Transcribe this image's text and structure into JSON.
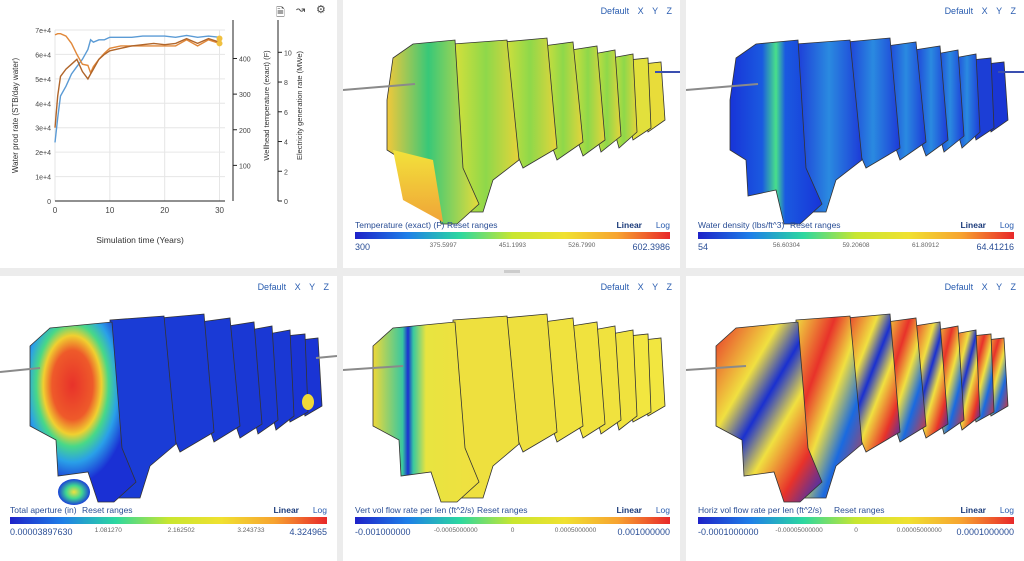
{
  "chart_panel": {
    "toolbar": {
      "doc_icon": "document-icon",
      "trend_icon": "trend-icon",
      "settings_icon": "gear-icon"
    },
    "chart_data": {
      "type": "line",
      "xlabel": "Simulation time (Years)",
      "xlim": [
        0,
        31
      ],
      "x_ticks": [
        "0",
        "10",
        "20",
        "30"
      ],
      "y_axes": [
        {
          "label": "Water prod rate (STB/day water)",
          "ticks": [
            "0",
            "1e+4",
            "2e+4",
            "3e+4",
            "4e+4",
            "5e+4",
            "6e+4",
            "7e+4"
          ],
          "lim": [
            0,
            70000
          ]
        },
        {
          "label": "Wellhead temperature (exact) (F)",
          "ticks": [
            "100",
            "200",
            "300",
            "400"
          ],
          "lim": [
            0,
            480
          ]
        },
        {
          "label": "Electricity generation rate (MWe)",
          "ticks": [
            "0",
            "2",
            "4",
            "6",
            "8",
            "10"
          ],
          "lim": [
            0,
            11.5
          ]
        }
      ],
      "series": [
        {
          "color": "#5b9bd5",
          "x": [
            0,
            0.5,
            1,
            2,
            3,
            4,
            5,
            6,
            6.5,
            7,
            8,
            9,
            10,
            12,
            14,
            16,
            18,
            20,
            22,
            24,
            26,
            28,
            30
          ],
          "y": [
            24000,
            34000,
            43000,
            47000,
            52000,
            55000,
            58000,
            62000,
            66000,
            65000,
            66000,
            66000,
            67000,
            67000,
            67000,
            67500,
            67500,
            67500,
            67000,
            67800,
            67000,
            67500,
            67000
          ]
        },
        {
          "color": "#e1883a",
          "x": [
            0,
            0.5,
            1,
            2,
            3,
            4,
            5,
            6,
            6.5,
            7,
            8,
            9,
            10,
            12,
            14,
            16,
            18,
            20,
            22,
            24,
            26,
            28,
            30
          ],
          "y": [
            68000,
            68500,
            68500,
            67500,
            64500,
            60000,
            56000,
            55500,
            52500,
            55000,
            58000,
            60500,
            62500,
            63500,
            63500,
            63500,
            63500,
            63500,
            63500,
            66000,
            63500,
            66000,
            64500
          ]
        },
        {
          "color": "#b0652a",
          "x": [
            0,
            0.5,
            1,
            2,
            3,
            4,
            5,
            6,
            6.5,
            7,
            8,
            9,
            10,
            12,
            14,
            16,
            18,
            20,
            22,
            24,
            26,
            28,
            30
          ],
          "y": [
            30000,
            43000,
            51000,
            54000,
            56000,
            58000,
            53000,
            50000,
            52000,
            54000,
            58000,
            60000,
            61500,
            62500,
            63500,
            64000,
            64500,
            64000,
            64500,
            66500,
            64500,
            66500,
            65000
          ]
        }
      ]
    }
  },
  "view_controls": {
    "default": "Default",
    "x": "X",
    "y": "Y",
    "z": "Z"
  },
  "panels": [
    {
      "colorbar": {
        "title": "Temperature (exact) (F)",
        "reset": "Reset ranges",
        "linear": "Linear",
        "log": "Log",
        "min": "300",
        "t1": "375.5997",
        "t2": "451.1993",
        "t3": "526.7990",
        "max": "602.3986"
      }
    },
    {
      "colorbar": {
        "title": "Water density (lbs/ft^3)",
        "reset": "Reset ranges",
        "linear": "Linear",
        "log": "Log",
        "min": "54",
        "t1": "56.60304",
        "t2": "59.20608",
        "t3": "61.80912",
        "max": "64.41216"
      }
    },
    {
      "colorbar": {
        "title": "Total aperture (in)",
        "reset": "Reset ranges",
        "linear": "Linear",
        "log": "Log",
        "min": "0.00003897630",
        "t1": "1.081270",
        "t2": "2.162502",
        "t3": "3.243733",
        "max": "4.324965"
      }
    },
    {
      "colorbar": {
        "title": "Vert vol flow rate per len (ft^2/s)",
        "reset": "Reset ranges",
        "linear": "Linear",
        "log": "Log",
        "min": "-0.001000000",
        "t1": "-0.0005000000",
        "t2": "0",
        "t3": "0.0005000000",
        "max": "0.001000000"
      }
    },
    {
      "colorbar": {
        "title": "Horiz vol flow rate per len (ft^2/s)",
        "reset": "Reset ranges",
        "linear": "Linear",
        "log": "Log",
        "min": "-0.0001000000",
        "t1": "-0.00005000000",
        "t2": "0",
        "t3": "0.00005000000",
        "max": "0.0001000000"
      }
    }
  ]
}
